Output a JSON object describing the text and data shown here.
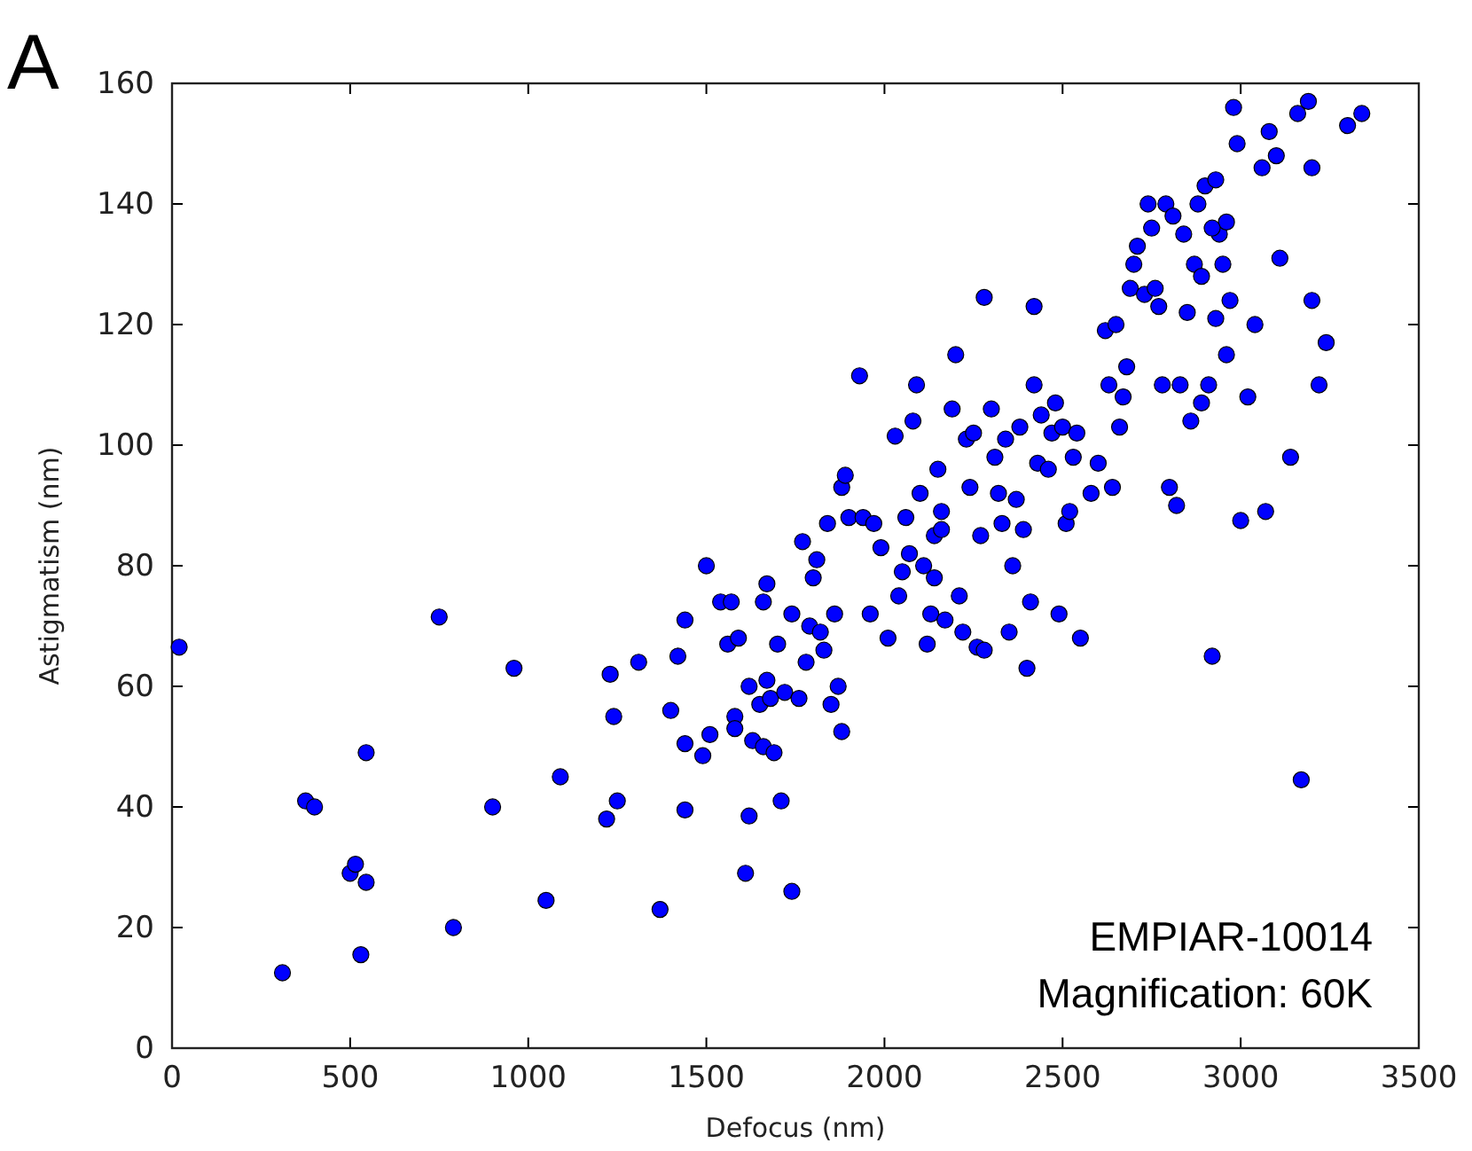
{
  "chart_data": {
    "type": "scatter",
    "xlabel": "Defocus (nm)",
    "ylabel": "Astigmatism (nm)",
    "xlim": [
      0,
      3500
    ],
    "ylim": [
      0,
      160
    ],
    "xticks": [
      0,
      500,
      1000,
      1500,
      2000,
      2500,
      3000,
      3500
    ],
    "yticks": [
      0,
      20,
      40,
      60,
      80,
      100,
      120,
      140,
      160
    ],
    "grid": false,
    "marker": "circle",
    "annotations": [
      "A",
      "EMPIAR-10014",
      "Magnification: 60K"
    ],
    "series": [
      {
        "color": "#0000ff",
        "x": [
          20,
          310,
          375,
          400,
          500,
          515,
          530,
          545,
          545,
          750,
          790,
          900,
          960,
          1050,
          1090,
          1220,
          1230,
          1240,
          1250,
          1310,
          1370,
          1400,
          1420,
          1440,
          1440,
          1440,
          1490,
          1500,
          1510,
          1540,
          1560,
          1570,
          1580,
          1580,
          1590,
          1610,
          1620,
          1620,
          1630,
          1650,
          1660,
          1660,
          1670,
          1670,
          1680,
          1690,
          1700,
          1710,
          1720,
          1740,
          1740,
          1760,
          1770,
          1780,
          1790,
          1800,
          1810,
          1820,
          1830,
          1840,
          1850,
          1860,
          1870,
          1880,
          1880,
          1890,
          1900,
          1930,
          1940,
          1960,
          1970,
          1990,
          2010,
          2030,
          2040,
          2050,
          2060,
          2070,
          2080,
          2090,
          2100,
          2110,
          2120,
          2130,
          2140,
          2140,
          2150,
          2160,
          2160,
          2170,
          2190,
          2200,
          2210,
          2220,
          2230,
          2240,
          2250,
          2260,
          2270,
          2280,
          2300,
          2310,
          2320,
          2330,
          2340,
          2350,
          2360,
          2370,
          2380,
          2390,
          2400,
          2410,
          2420,
          2430,
          2440,
          2460,
          2470,
          2480,
          2490,
          2500,
          2510,
          2520,
          2530,
          2540,
          2550,
          2580,
          2600,
          2620,
          2630,
          2640,
          2650,
          2660,
          2670,
          2680,
          2690,
          2700,
          2710,
          2730,
          2740,
          2750,
          2760,
          2770,
          2780,
          2790,
          2800,
          2810,
          2820,
          2830,
          2840,
          2850,
          2860,
          2870,
          2880,
          2890,
          2900,
          2910,
          2920,
          2930,
          2940,
          2950,
          2960,
          2970,
          2980,
          2990,
          3000,
          3020,
          3040,
          3060,
          3080,
          3070,
          3100,
          3110,
          3140,
          3160,
          3170,
          3190,
          3200,
          3200,
          3220,
          3240,
          3300,
          3340,
          2420,
          2280,
          2930,
          2920,
          2960,
          2890
        ],
        "values": [
          66.5,
          12.5,
          41,
          40,
          29,
          30.5,
          15.5,
          27.5,
          49,
          71.5,
          20,
          40,
          63,
          24.5,
          45,
          38,
          62,
          55,
          41,
          64,
          23,
          56,
          65,
          71,
          39.5,
          50.5,
          48.5,
          80,
          52,
          74,
          67,
          74,
          55,
          53,
          68,
          29,
          38.5,
          60,
          51,
          57,
          74,
          50,
          77,
          61,
          58,
          49,
          67,
          41,
          59,
          26,
          72,
          58,
          84,
          64,
          70,
          78,
          81,
          69,
          66,
          87,
          57,
          72,
          60,
          52.5,
          93,
          95,
          88,
          111.5,
          88,
          72,
          87,
          83,
          68,
          101.5,
          75,
          79,
          88,
          82,
          104,
          110,
          92,
          80,
          67,
          72,
          78,
          85,
          96,
          89,
          86,
          71,
          106,
          115,
          75,
          69,
          101,
          93,
          102,
          66.5,
          85,
          66,
          106,
          98,
          92,
          87,
          101,
          69,
          80,
          91,
          103,
          86,
          63,
          74,
          110,
          97,
          105,
          96,
          102,
          107,
          72,
          103,
          87,
          89,
          98,
          102,
          68,
          92,
          97,
          119,
          110,
          93,
          120,
          103,
          108,
          113,
          126,
          130,
          133,
          125,
          140,
          136,
          126,
          123,
          110,
          140,
          93,
          138,
          90,
          110,
          135,
          122,
          104,
          130,
          140,
          107,
          143,
          110,
          65,
          121,
          135,
          130,
          137,
          124,
          156,
          150,
          87.5,
          108,
          120,
          146,
          152,
          89,
          148,
          131,
          98,
          155,
          44.5,
          157,
          124,
          146,
          110,
          117,
          153,
          155,
          123,
          124.5,
          144,
          136,
          115,
          128
        ]
      }
    ]
  }
}
